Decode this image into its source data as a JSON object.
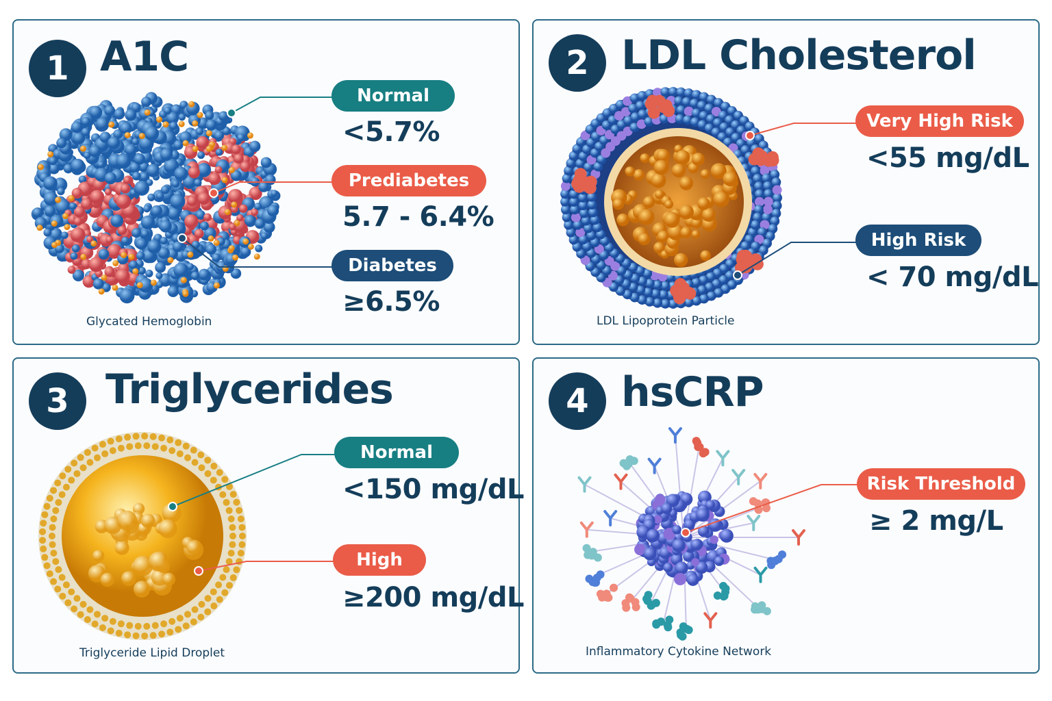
{
  "panels": [
    {
      "number": "1",
      "title": "A1C",
      "caption": "Glycated Hemoglobin",
      "illustration": "hemoglobin-molecule",
      "ranges": [
        {
          "label": "Normal",
          "value": "<5.7%",
          "color": "#177e82"
        },
        {
          "label": "Prediabetes",
          "value": "5.7 - 6.4%",
          "color": "#ea5c48"
        },
        {
          "label": "Diabetes",
          "value": "≥6.5%",
          "color": "#1d4d78"
        }
      ]
    },
    {
      "number": "2",
      "title": "LDL Cholesterol",
      "caption": "LDL Lipoprotein Particle",
      "illustration": "lipoprotein-particle",
      "ranges": [
        {
          "label": "Very High Risk",
          "value": "<55 mg/dL",
          "color": "#ea5c48"
        },
        {
          "label": "High Risk",
          "value": "< 70 mg/dL",
          "color": "#1d4d78"
        }
      ]
    },
    {
      "number": "3",
      "title": "Triglycerides",
      "caption": "Triglyceride Lipid Droplet",
      "illustration": "lipid-droplet",
      "ranges": [
        {
          "label": "Normal",
          "value": "<150 mg/dL",
          "color": "#177e82"
        },
        {
          "label": "High",
          "value": "≥200 mg/dL",
          "color": "#ea5c48"
        }
      ]
    },
    {
      "number": "4",
      "title": "hsCRP",
      "caption": "Inflammatory Cytokine Network",
      "illustration": "cytokine-network",
      "ranges": [
        {
          "label": "Risk Threshold",
          "value": "≥ 2 mg/L",
          "color": "#ea5c48"
        }
      ]
    }
  ]
}
